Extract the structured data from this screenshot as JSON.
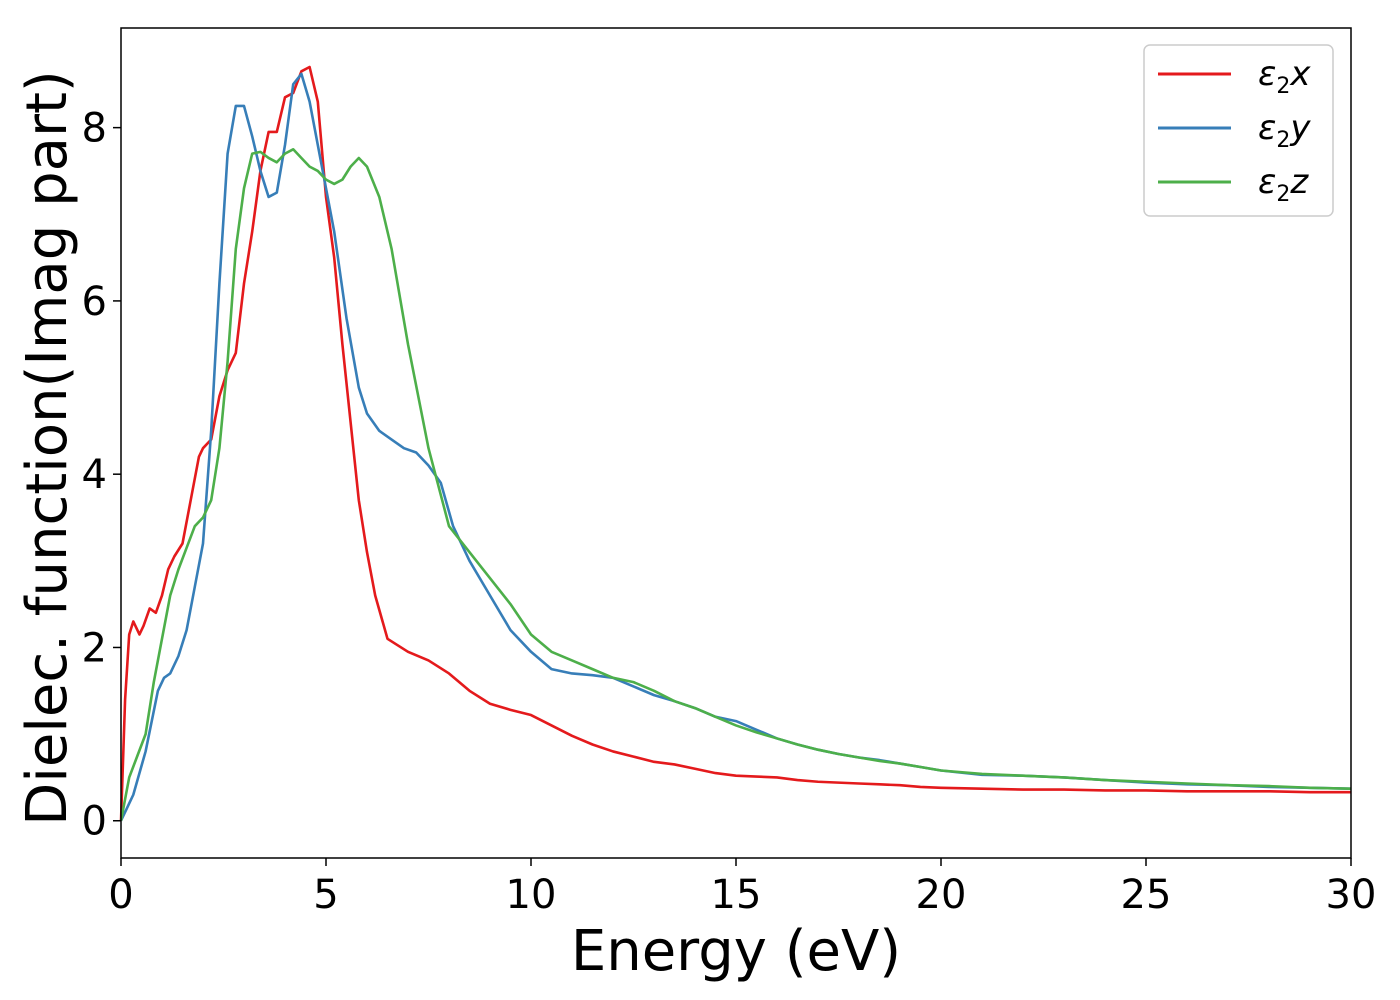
{
  "chart_data": {
    "type": "line",
    "xlabel": "Energy (eV)",
    "ylabel": "Dielec. function(Imag part)",
    "xlim": [
      0,
      30
    ],
    "ylim": [
      -0.43,
      9.15
    ],
    "xticks": [
      0,
      5,
      10,
      15,
      20,
      25,
      30
    ],
    "yticks": [
      0,
      2,
      4,
      6,
      8
    ],
    "grid": false,
    "legend_position": "upper right",
    "series": [
      {
        "name": "ε2x",
        "legend": {
          "main": "ε",
          "sub": "2",
          "var": "x"
        },
        "color": "#e41a1c",
        "x": [
          0,
          0.1,
          0.2,
          0.3,
          0.45,
          0.55,
          0.7,
          0.85,
          1.0,
          1.15,
          1.3,
          1.5,
          1.7,
          1.9,
          2.0,
          2.2,
          2.4,
          2.6,
          2.8,
          3.0,
          3.2,
          3.4,
          3.6,
          3.8,
          4.0,
          4.2,
          4.4,
          4.6,
          4.8,
          5.0,
          5.2,
          5.4,
          5.6,
          5.8,
          6.0,
          6.2,
          6.5,
          7.0,
          7.5,
          8.0,
          8.5,
          9.0,
          9.5,
          10.0,
          10.5,
          11.0,
          11.5,
          12.0,
          12.5,
          13.0,
          13.5,
          14.0,
          14.5,
          15.0,
          15.5,
          16.0,
          16.5,
          17.0,
          17.5,
          18.0,
          18.5,
          19.0,
          19.5,
          20.0,
          21.0,
          22.0,
          23.0,
          24.0,
          25.0,
          26.0,
          27.0,
          28.0,
          29.0,
          30.0
        ],
        "y": [
          0.0,
          1.4,
          2.15,
          2.3,
          2.15,
          2.25,
          2.45,
          2.4,
          2.6,
          2.9,
          3.05,
          3.2,
          3.7,
          4.2,
          4.3,
          4.4,
          4.9,
          5.2,
          5.4,
          6.2,
          6.8,
          7.5,
          7.95,
          7.95,
          8.35,
          8.4,
          8.65,
          8.7,
          8.3,
          7.2,
          6.5,
          5.5,
          4.6,
          3.7,
          3.1,
          2.6,
          2.1,
          1.95,
          1.85,
          1.7,
          1.5,
          1.35,
          1.28,
          1.22,
          1.1,
          0.98,
          0.88,
          0.8,
          0.74,
          0.68,
          0.65,
          0.6,
          0.55,
          0.52,
          0.51,
          0.5,
          0.47,
          0.45,
          0.44,
          0.43,
          0.42,
          0.41,
          0.39,
          0.38,
          0.37,
          0.36,
          0.36,
          0.35,
          0.35,
          0.34,
          0.34,
          0.34,
          0.33,
          0.33
        ]
      },
      {
        "name": "ε2y",
        "legend": {
          "main": "ε",
          "sub": "2",
          "var": "y"
        },
        "color": "#377eb8",
        "x": [
          0,
          0.3,
          0.6,
          0.9,
          1.05,
          1.2,
          1.4,
          1.6,
          1.8,
          2.0,
          2.2,
          2.4,
          2.6,
          2.8,
          3.0,
          3.2,
          3.4,
          3.6,
          3.8,
          4.0,
          4.2,
          4.4,
          4.6,
          4.8,
          5.0,
          5.2,
          5.5,
          5.8,
          6.0,
          6.3,
          6.6,
          6.9,
          7.2,
          7.5,
          7.8,
          8.1,
          8.5,
          9.0,
          9.5,
          10.0,
          10.5,
          11.0,
          11.5,
          12.0,
          12.5,
          13.0,
          13.5,
          14.0,
          14.5,
          15.0,
          15.5,
          16.0,
          16.5,
          17.0,
          17.5,
          18.0,
          18.5,
          19.0,
          19.5,
          20.0,
          21.0,
          22.0,
          23.0,
          24.0,
          25.0,
          26.0,
          27.0,
          28.0,
          29.0,
          30.0
        ],
        "y": [
          0.0,
          0.3,
          0.8,
          1.5,
          1.65,
          1.7,
          1.9,
          2.2,
          2.7,
          3.2,
          4.5,
          6.2,
          7.7,
          8.25,
          8.25,
          7.9,
          7.5,
          7.2,
          7.25,
          7.8,
          8.5,
          8.62,
          8.3,
          7.8,
          7.3,
          6.8,
          5.8,
          5.0,
          4.7,
          4.5,
          4.4,
          4.3,
          4.25,
          4.1,
          3.9,
          3.4,
          3.0,
          2.6,
          2.2,
          1.95,
          1.75,
          1.7,
          1.68,
          1.65,
          1.55,
          1.45,
          1.38,
          1.3,
          1.2,
          1.15,
          1.05,
          0.95,
          0.88,
          0.82,
          0.77,
          0.73,
          0.7,
          0.66,
          0.62,
          0.58,
          0.53,
          0.52,
          0.5,
          0.47,
          0.44,
          0.42,
          0.41,
          0.39,
          0.38,
          0.37
        ]
      },
      {
        "name": "ε2z",
        "legend": {
          "main": "ε",
          "sub": "2",
          "var": "z"
        },
        "color": "#4daf4a",
        "x": [
          0,
          0.2,
          0.4,
          0.6,
          0.8,
          1.0,
          1.2,
          1.4,
          1.6,
          1.8,
          2.0,
          2.2,
          2.4,
          2.6,
          2.8,
          3.0,
          3.2,
          3.4,
          3.6,
          3.8,
          4.0,
          4.2,
          4.4,
          4.6,
          4.8,
          5.0,
          5.2,
          5.4,
          5.6,
          5.8,
          6.0,
          6.3,
          6.6,
          7.0,
          7.5,
          8.0,
          8.5,
          9.0,
          9.5,
          10.0,
          10.5,
          11.0,
          11.5,
          12.0,
          12.5,
          13.0,
          13.5,
          14.0,
          14.5,
          15.0,
          15.5,
          16.0,
          16.5,
          17.0,
          17.5,
          18.0,
          18.5,
          19.0,
          19.5,
          20.0,
          21.0,
          22.0,
          23.0,
          24.0,
          25.0,
          26.0,
          27.0,
          28.0,
          29.0,
          30.0
        ],
        "y": [
          0.0,
          0.5,
          0.75,
          1.0,
          1.6,
          2.1,
          2.6,
          2.9,
          3.15,
          3.4,
          3.5,
          3.7,
          4.3,
          5.3,
          6.6,
          7.3,
          7.7,
          7.72,
          7.65,
          7.6,
          7.7,
          7.75,
          7.65,
          7.55,
          7.5,
          7.4,
          7.35,
          7.4,
          7.55,
          7.65,
          7.55,
          7.2,
          6.6,
          5.5,
          4.3,
          3.4,
          3.1,
          2.8,
          2.5,
          2.15,
          1.95,
          1.85,
          1.75,
          1.65,
          1.6,
          1.5,
          1.38,
          1.3,
          1.2,
          1.1,
          1.02,
          0.95,
          0.88,
          0.82,
          0.77,
          0.73,
          0.69,
          0.66,
          0.62,
          0.58,
          0.54,
          0.52,
          0.5,
          0.47,
          0.45,
          0.43,
          0.41,
          0.4,
          0.38,
          0.37
        ]
      }
    ]
  }
}
